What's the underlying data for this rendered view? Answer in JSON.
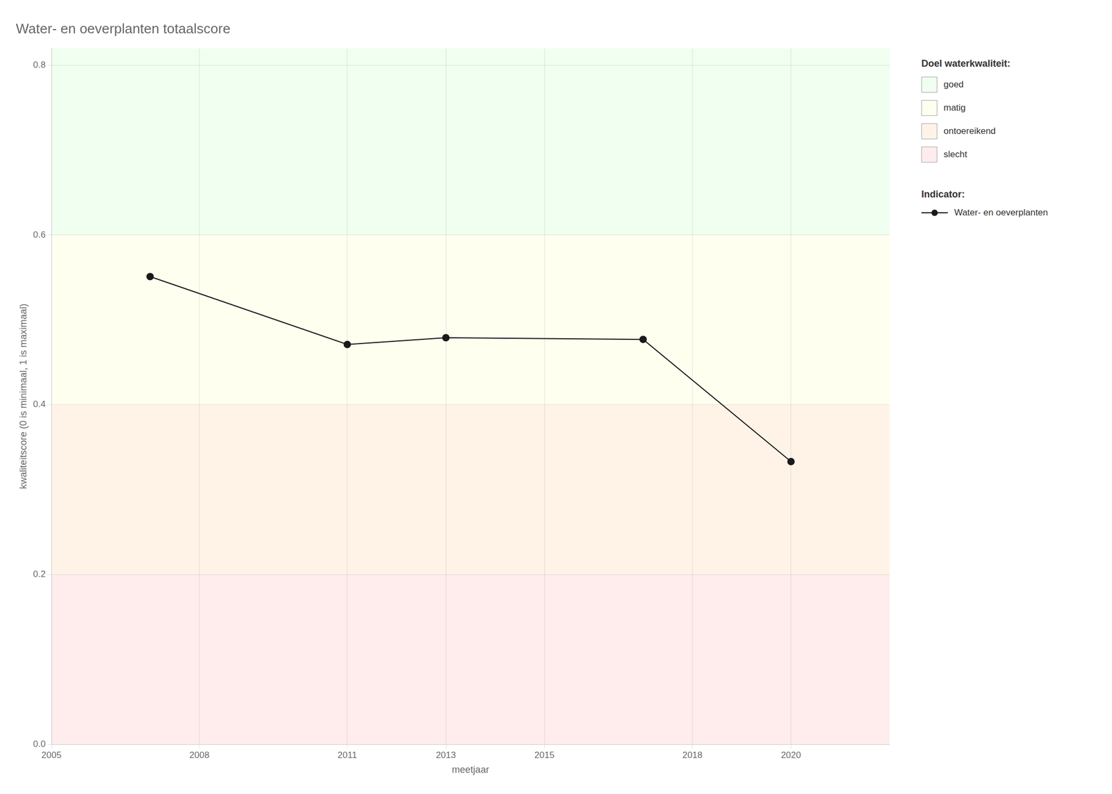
{
  "chart_data": {
    "type": "line",
    "title": "Water- en oeverplanten totaalscore",
    "x_label": "meetjaar",
    "y_label": "kwaliteitscore (0 is minimaal, 1 is maximaal)",
    "x": [
      2007,
      2011,
      2013,
      2017,
      2020
    ],
    "series": [
      {
        "name": "Water- en oeverplanten",
        "color": "#1a1a1a",
        "marker": "circle",
        "line_style": "solid",
        "values": [
          0.551,
          0.471,
          0.479,
          0.477,
          0.333
        ]
      }
    ],
    "xlim": [
      2005,
      2022
    ],
    "xticks": [
      2005,
      2008,
      2011,
      2013,
      2015,
      2018,
      2020
    ],
    "ylim": [
      0.0,
      0.82
    ],
    "yticks": [
      {
        "value": 0.0,
        "label": "0.0"
      },
      0.2,
      0.4,
      0.6,
      0.8
    ],
    "grid": true,
    "legend": "right",
    "zones_title": "Doel waterkwaliteit:",
    "series_title": "Indicator:",
    "zones": [
      {
        "ymin": 0.6,
        "ymax": 0.82,
        "color": "#F0FFF0",
        "label": "goed"
      },
      {
        "ymin": 0.4,
        "ymax": 0.6,
        "color": "#FFFFF0",
        "label": "matig"
      },
      {
        "ymin": 0.2,
        "ymax": 0.4,
        "color": "#FFF3E8",
        "label": "ontoereikend"
      },
      {
        "ymin": 0.0,
        "ymax": 0.2,
        "color": "#FFECEC",
        "label": "slecht"
      }
    ]
  }
}
